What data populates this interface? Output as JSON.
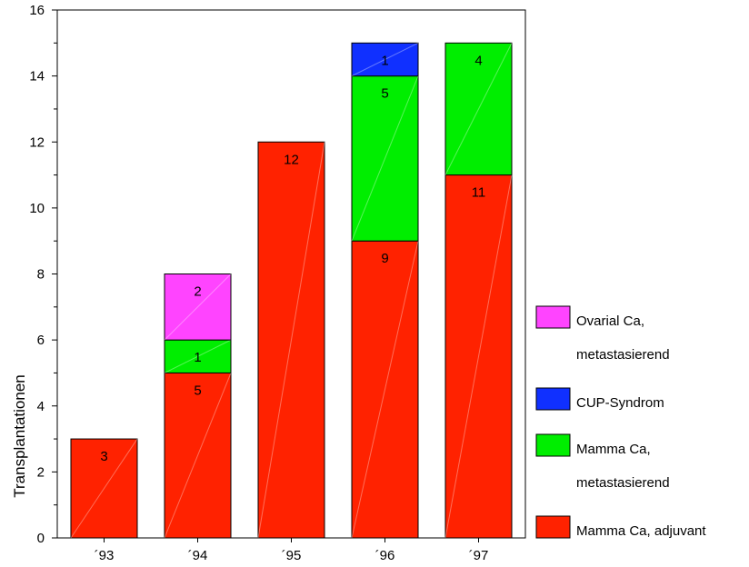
{
  "chart_data": {
    "type": "bar",
    "stacked": true,
    "categories": [
      "´93",
      "´94",
      "´95",
      "´96",
      "´97"
    ],
    "series": [
      {
        "name": "Mamma Ca, adjuvant",
        "color": "#ff2200",
        "values": [
          3,
          5,
          12,
          9,
          11
        ]
      },
      {
        "name": "Mamma Ca, metastasierend",
        "color": "#00ee00",
        "values": [
          0,
          1,
          0,
          5,
          4
        ]
      },
      {
        "name": "CUP-Syndrom",
        "color": "#1030ff",
        "values": [
          0,
          0,
          0,
          1,
          0
        ]
      },
      {
        "name": "Ovarial Ca, metastasierend",
        "color": "#ff44ff",
        "values": [
          0,
          2,
          0,
          0,
          0
        ]
      }
    ],
    "ylabel": "Transplantationen",
    "xlabel": "",
    "ylim": [
      0,
      16
    ],
    "yticks": [
      0,
      2,
      4,
      6,
      8,
      10,
      12,
      14,
      16
    ],
    "grid": false,
    "legend_position": "right",
    "legend_order": [
      "Ovarial Ca, metastasierend",
      "CUP-Syndrom",
      "Mamma Ca, metastasierend",
      "Mamma Ca, adjuvant"
    ],
    "legend_lines": {
      "Ovarial Ca, metastasierend": [
        "Ovarial Ca,",
        "metastasierend"
      ],
      "CUP-Syndrom": [
        "CUP-Syndrom"
      ],
      "Mamma Ca, metastasierend": [
        "Mamma Ca,",
        "metastasierend"
      ],
      "Mamma Ca, adjuvant": [
        "Mamma Ca, adjuvant"
      ]
    }
  }
}
